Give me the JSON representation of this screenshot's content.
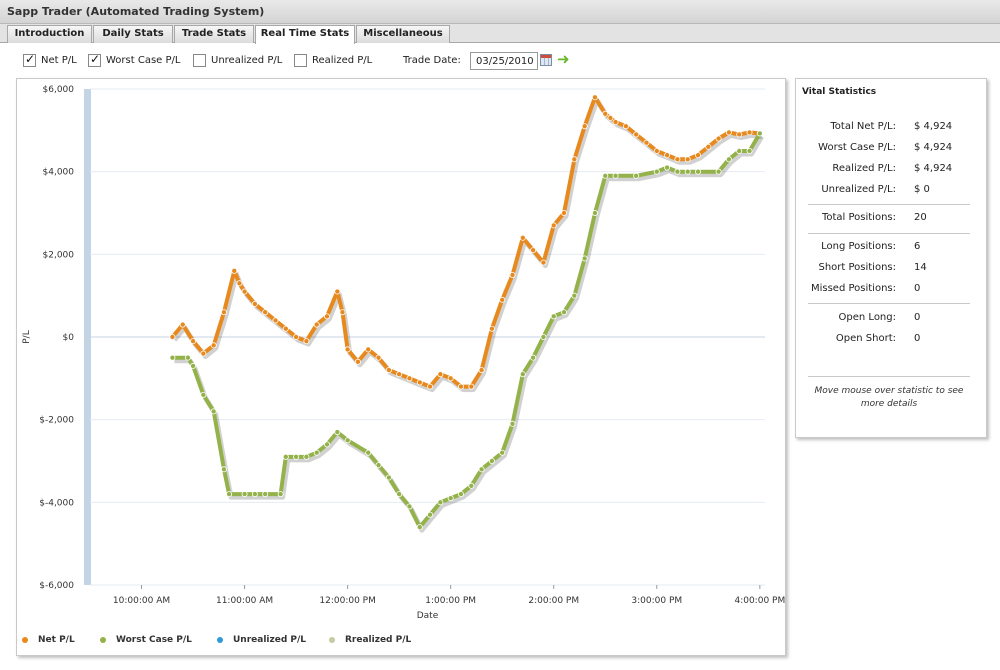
{
  "window": {
    "title": "Sapp Trader (Automated Trading System)"
  },
  "tabs": [
    {
      "label": "Introduction",
      "active": false
    },
    {
      "label": "Daily Stats",
      "active": false
    },
    {
      "label": "Trade Stats",
      "active": false
    },
    {
      "label": "Real Time Stats",
      "active": true
    },
    {
      "label": "Miscellaneous",
      "active": false
    }
  ],
  "toolbar": {
    "checkboxes": [
      {
        "label": "Net P/L",
        "checked": true
      },
      {
        "label": "Worst Case P/L",
        "checked": true
      },
      {
        "label": "Unrealized P/L",
        "checked": false
      },
      {
        "label": "Realized P/L",
        "checked": false
      }
    ],
    "trade_date_label": "Trade Date:",
    "trade_date_value": "03/25/2010",
    "calendar_icon": "calendar-icon",
    "go_icon": "arrow-right-icon"
  },
  "chart_data": {
    "type": "line",
    "xlabel": "Date",
    "ylabel": "P/L",
    "x_ticks": [
      "10:00:00 AM",
      "11:00:00 AM",
      "12:00:00 PM",
      "1:00:00 PM",
      "2:00:00 PM",
      "3:00:00 PM",
      "4:00:00 PM"
    ],
    "y_ticks": [
      "$6,000",
      "$4,000",
      "$2,000",
      "$0",
      "$-2,000",
      "$-4,000",
      "$-6,000"
    ],
    "ylim": [
      -6000,
      6000
    ],
    "xlim_hours": [
      9.5,
      16.05
    ],
    "grid": "horizontal",
    "legend_position": "bottom",
    "series": [
      {
        "name": "Net P/L",
        "color": "#e8891e",
        "x": [
          10.3,
          10.4,
          10.5,
          10.6,
          10.7,
          10.8,
          10.9,
          10.95,
          11.0,
          11.1,
          11.2,
          11.3,
          11.4,
          11.5,
          11.6,
          11.7,
          11.8,
          11.9,
          11.95,
          12.0,
          12.1,
          12.2,
          12.3,
          12.4,
          12.5,
          12.6,
          12.7,
          12.8,
          12.9,
          13.0,
          13.1,
          13.2,
          13.3,
          13.4,
          13.5,
          13.6,
          13.7,
          13.8,
          13.9,
          14.0,
          14.1,
          14.2,
          14.3,
          14.4,
          14.5,
          14.55,
          14.6,
          14.7,
          14.8,
          14.9,
          15.0,
          15.1,
          15.2,
          15.3,
          15.4,
          15.5,
          15.6,
          15.7,
          15.8,
          15.9,
          16.0
        ],
        "values": [
          0,
          300,
          -100,
          -400,
          -200,
          600,
          1600,
          1300,
          1100,
          800,
          600,
          400,
          200,
          0,
          -100,
          300,
          500,
          1100,
          600,
          -300,
          -600,
          -300,
          -500,
          -800,
          -900,
          -1000,
          -1100,
          -1200,
          -900,
          -1000,
          -1200,
          -1200,
          -800,
          200,
          900,
          1500,
          2400,
          2100,
          1800,
          2700,
          3000,
          4300,
          5100,
          5800,
          5400,
          5300,
          5200,
          5100,
          4900,
          4700,
          4500,
          4400,
          4300,
          4300,
          4400,
          4600,
          4800,
          4950,
          4900,
          4950,
          4924
        ]
      },
      {
        "name": "Worst Case P/L",
        "color": "#94b24a",
        "x": [
          10.3,
          10.45,
          10.5,
          10.6,
          10.7,
          10.8,
          10.85,
          11.0,
          11.1,
          11.2,
          11.35,
          11.4,
          11.5,
          11.6,
          11.7,
          11.8,
          11.9,
          12.0,
          12.2,
          12.3,
          12.4,
          12.5,
          12.6,
          12.7,
          12.8,
          12.9,
          13.0,
          13.1,
          13.2,
          13.3,
          13.4,
          13.5,
          13.6,
          13.7,
          13.8,
          13.9,
          14.0,
          14.1,
          14.2,
          14.3,
          14.4,
          14.5,
          14.6,
          14.8,
          15.0,
          15.1,
          15.2,
          15.3,
          15.4,
          15.6,
          15.7,
          15.8,
          15.9,
          16.0
        ],
        "values": [
          -500,
          -500,
          -700,
          -1400,
          -1800,
          -3200,
          -3800,
          -3800,
          -3800,
          -3800,
          -3800,
          -2900,
          -2900,
          -2900,
          -2800,
          -2600,
          -2300,
          -2500,
          -2800,
          -3100,
          -3400,
          -3800,
          -4100,
          -4600,
          -4300,
          -4000,
          -3900,
          -3800,
          -3600,
          -3200,
          -3000,
          -2800,
          -2100,
          -900,
          -500,
          0,
          500,
          600,
          1000,
          1900,
          3000,
          3900,
          3900,
          3900,
          4000,
          4100,
          4000,
          4000,
          4000,
          4000,
          4300,
          4500,
          4500,
          4924
        ]
      },
      {
        "name": "Unrealized P/L",
        "color": "#2f9ad8",
        "x": [],
        "values": []
      },
      {
        "name": "Rrealized P/L",
        "color": "#c6c9a3",
        "x": [],
        "values": []
      }
    ]
  },
  "stats": {
    "title": "Vital Statistics",
    "rows": [
      {
        "label": "Total Net P/L:",
        "value": "$ 4,924"
      },
      {
        "label": "Worst Case P/L:",
        "value": "$ 4,924"
      },
      {
        "label": "Realized P/L:",
        "value": "$ 4,924"
      },
      {
        "label": "Unrealized P/L:",
        "value": "$ 0"
      },
      {
        "label": "Total Positions:",
        "value": "20"
      },
      {
        "label": "Long Positions:",
        "value": "6"
      },
      {
        "label": "Short Positions:",
        "value": "14"
      },
      {
        "label": "Missed Positions:",
        "value": "0"
      },
      {
        "label": "Open Long:",
        "value": "0"
      },
      {
        "label": "Open Short:",
        "value": "0"
      }
    ],
    "note": "Move mouse over statistic to see more details"
  }
}
